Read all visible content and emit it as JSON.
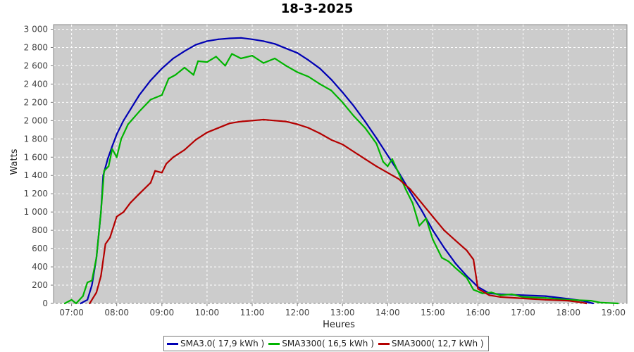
{
  "chart_data": {
    "type": "line",
    "title": "18-3-2025",
    "xlabel": "Heures",
    "ylabel": "Watts",
    "x_unit": "time of day (hours)",
    "xlim": [
      6.6,
      19.3
    ],
    "ylim": [
      0,
      3050
    ],
    "x_ticks": [
      {
        "value": 7,
        "label": "07:00"
      },
      {
        "value": 8,
        "label": "08:00"
      },
      {
        "value": 9,
        "label": "09:00"
      },
      {
        "value": 10,
        "label": "10:00"
      },
      {
        "value": 11,
        "label": "11:00"
      },
      {
        "value": 12,
        "label": "12:00"
      },
      {
        "value": 13,
        "label": "13:00"
      },
      {
        "value": 14,
        "label": "14:00"
      },
      {
        "value": 15,
        "label": "15:00"
      },
      {
        "value": 16,
        "label": "16:00"
      },
      {
        "value": 17,
        "label": "17:00"
      },
      {
        "value": 18,
        "label": "18:00"
      },
      {
        "value": 19,
        "label": "19:00"
      }
    ],
    "y_ticks": [
      {
        "value": 0,
        "label": "0"
      },
      {
        "value": 200,
        "label": "200"
      },
      {
        "value": 400,
        "label": "400"
      },
      {
        "value": 600,
        "label": "600"
      },
      {
        "value": 800,
        "label": "800"
      },
      {
        "value": 1000,
        "label": "1 000"
      },
      {
        "value": 1200,
        "label": "1 200"
      },
      {
        "value": 1400,
        "label": "1 400"
      },
      {
        "value": 1600,
        "label": "1 600"
      },
      {
        "value": 1800,
        "label": "1 800"
      },
      {
        "value": 2000,
        "label": "2 000"
      },
      {
        "value": 2200,
        "label": "2 200"
      },
      {
        "value": 2400,
        "label": "2 400"
      },
      {
        "value": 2600,
        "label": "2 600"
      },
      {
        "value": 2800,
        "label": "2 800"
      },
      {
        "value": 3000,
        "label": "3 000"
      }
    ],
    "grid": true,
    "legend_position": "bottom-center",
    "series": [
      {
        "name": "SMA3.0( 17,9 kWh )",
        "color": "#0000b4",
        "points": [
          [
            7.2,
            0
          ],
          [
            7.35,
            40
          ],
          [
            7.45,
            200
          ],
          [
            7.55,
            500
          ],
          [
            7.65,
            1000
          ],
          [
            7.7,
            1400
          ],
          [
            7.8,
            1580
          ],
          [
            7.9,
            1720
          ],
          [
            8.0,
            1850
          ],
          [
            8.15,
            2000
          ],
          [
            8.3,
            2120
          ],
          [
            8.5,
            2280
          ],
          [
            8.75,
            2440
          ],
          [
            9.0,
            2570
          ],
          [
            9.25,
            2680
          ],
          [
            9.5,
            2760
          ],
          [
            9.75,
            2830
          ],
          [
            10.0,
            2870
          ],
          [
            10.25,
            2890
          ],
          [
            10.5,
            2900
          ],
          [
            10.75,
            2905
          ],
          [
            11.0,
            2890
          ],
          [
            11.25,
            2870
          ],
          [
            11.5,
            2840
          ],
          [
            11.75,
            2790
          ],
          [
            12.0,
            2740
          ],
          [
            12.25,
            2660
          ],
          [
            12.5,
            2570
          ],
          [
            12.75,
            2450
          ],
          [
            13.0,
            2310
          ],
          [
            13.25,
            2160
          ],
          [
            13.5,
            1990
          ],
          [
            13.75,
            1810
          ],
          [
            14.0,
            1620
          ],
          [
            14.25,
            1430
          ],
          [
            14.5,
            1220
          ],
          [
            14.75,
            1020
          ],
          [
            15.0,
            800
          ],
          [
            15.25,
            610
          ],
          [
            15.5,
            440
          ],
          [
            15.75,
            300
          ],
          [
            16.0,
            180
          ],
          [
            16.25,
            110
          ],
          [
            16.5,
            100
          ],
          [
            17.0,
            90
          ],
          [
            17.5,
            80
          ],
          [
            18.0,
            50
          ],
          [
            18.3,
            30
          ],
          [
            18.55,
            0
          ]
        ]
      },
      {
        "name": "SMA3300( 16,5 kWh )",
        "color": "#00b400",
        "points": [
          [
            6.85,
            0
          ],
          [
            7.0,
            40
          ],
          [
            7.1,
            0
          ],
          [
            7.25,
            80
          ],
          [
            7.35,
            230
          ],
          [
            7.45,
            250
          ],
          [
            7.55,
            500
          ],
          [
            7.65,
            1000
          ],
          [
            7.72,
            1450
          ],
          [
            7.82,
            1500
          ],
          [
            7.9,
            1690
          ],
          [
            8.0,
            1600
          ],
          [
            8.1,
            1800
          ],
          [
            8.25,
            1960
          ],
          [
            8.5,
            2100
          ],
          [
            8.75,
            2230
          ],
          [
            9.0,
            2280
          ],
          [
            9.15,
            2460
          ],
          [
            9.3,
            2500
          ],
          [
            9.5,
            2580
          ],
          [
            9.7,
            2500
          ],
          [
            9.8,
            2650
          ],
          [
            10.0,
            2640
          ],
          [
            10.2,
            2700
          ],
          [
            10.4,
            2600
          ],
          [
            10.55,
            2730
          ],
          [
            10.75,
            2680
          ],
          [
            11.0,
            2710
          ],
          [
            11.25,
            2630
          ],
          [
            11.5,
            2680
          ],
          [
            11.75,
            2600
          ],
          [
            12.0,
            2530
          ],
          [
            12.25,
            2480
          ],
          [
            12.5,
            2400
          ],
          [
            12.75,
            2330
          ],
          [
            13.0,
            2200
          ],
          [
            13.25,
            2050
          ],
          [
            13.5,
            1920
          ],
          [
            13.75,
            1750
          ],
          [
            13.9,
            1550
          ],
          [
            14.0,
            1500
          ],
          [
            14.1,
            1580
          ],
          [
            14.25,
            1420
          ],
          [
            14.4,
            1250
          ],
          [
            14.55,
            1100
          ],
          [
            14.7,
            850
          ],
          [
            14.85,
            930
          ],
          [
            15.0,
            700
          ],
          [
            15.2,
            500
          ],
          [
            15.35,
            460
          ],
          [
            15.5,
            390
          ],
          [
            15.75,
            280
          ],
          [
            15.9,
            150
          ],
          [
            16.1,
            110
          ],
          [
            16.3,
            120
          ],
          [
            16.5,
            90
          ],
          [
            16.75,
            100
          ],
          [
            17.0,
            70
          ],
          [
            17.5,
            60
          ],
          [
            18.0,
            40
          ],
          [
            18.5,
            30
          ],
          [
            18.7,
            10
          ],
          [
            19.1,
            0
          ]
        ]
      },
      {
        "name": "SMA3000( 12,7 kWh )",
        "color": "#b40000",
        "points": [
          [
            7.4,
            0
          ],
          [
            7.55,
            120
          ],
          [
            7.65,
            300
          ],
          [
            7.75,
            650
          ],
          [
            7.85,
            720
          ],
          [
            8.0,
            950
          ],
          [
            8.15,
            1000
          ],
          [
            8.3,
            1100
          ],
          [
            8.5,
            1200
          ],
          [
            8.75,
            1320
          ],
          [
            8.85,
            1450
          ],
          [
            9.0,
            1430
          ],
          [
            9.1,
            1530
          ],
          [
            9.25,
            1600
          ],
          [
            9.5,
            1680
          ],
          [
            9.75,
            1790
          ],
          [
            10.0,
            1870
          ],
          [
            10.25,
            1920
          ],
          [
            10.5,
            1970
          ],
          [
            10.75,
            1990
          ],
          [
            11.0,
            2000
          ],
          [
            11.25,
            2010
          ],
          [
            11.5,
            2000
          ],
          [
            11.75,
            1990
          ],
          [
            12.0,
            1960
          ],
          [
            12.25,
            1920
          ],
          [
            12.5,
            1860
          ],
          [
            12.75,
            1790
          ],
          [
            13.0,
            1740
          ],
          [
            13.25,
            1660
          ],
          [
            13.5,
            1580
          ],
          [
            13.75,
            1500
          ],
          [
            14.0,
            1430
          ],
          [
            14.25,
            1360
          ],
          [
            14.5,
            1250
          ],
          [
            14.75,
            1100
          ],
          [
            15.0,
            950
          ],
          [
            15.25,
            800
          ],
          [
            15.5,
            690
          ],
          [
            15.75,
            580
          ],
          [
            15.9,
            480
          ],
          [
            16.0,
            160
          ],
          [
            16.25,
            90
          ],
          [
            16.5,
            70
          ],
          [
            17.0,
            55
          ],
          [
            17.5,
            40
          ],
          [
            18.0,
            30
          ],
          [
            18.3,
            10
          ],
          [
            18.4,
            0
          ]
        ]
      }
    ]
  }
}
